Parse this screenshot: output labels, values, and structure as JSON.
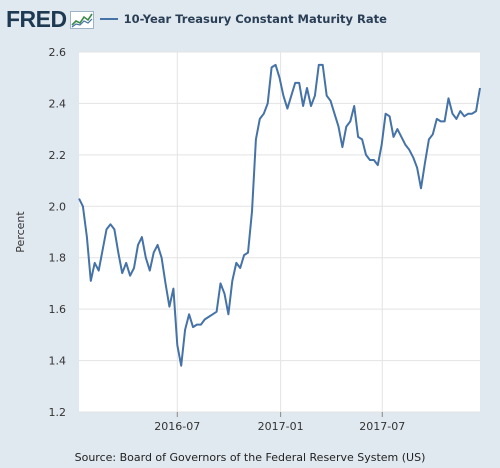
{
  "header": {
    "logo_text": "FRED",
    "legend_label": "10-Year Treasury Constant Maturity Rate",
    "series_color": "#4572a7"
  },
  "source": "Source: Board of Governors of the Federal Reserve System (US)",
  "chart_data": {
    "type": "line",
    "title": "",
    "xlabel": "",
    "ylabel": "Percent",
    "ylim": [
      1.2,
      2.6
    ],
    "yticks": [
      1.2,
      1.4,
      1.6,
      1.8,
      2.0,
      2.2,
      2.4,
      2.6
    ],
    "xlim": [
      "2016-01-08",
      "2017-12-22"
    ],
    "xticks": [
      {
        "date": "2016-07-01",
        "label": "2016-07"
      },
      {
        "date": "2017-01-01",
        "label": "2017-01"
      },
      {
        "date": "2017-07-01",
        "label": "2017-07"
      }
    ],
    "grid": true,
    "series": [
      {
        "name": "10-Year Treasury Constant Maturity Rate",
        "color": "#4572a7",
        "x": [
          "2016-01-08",
          "2016-01-15",
          "2016-01-22",
          "2016-01-29",
          "2016-02-05",
          "2016-02-12",
          "2016-02-19",
          "2016-02-26",
          "2016-03-04",
          "2016-03-11",
          "2016-03-18",
          "2016-03-25",
          "2016-04-01",
          "2016-04-08",
          "2016-04-15",
          "2016-04-22",
          "2016-04-29",
          "2016-05-06",
          "2016-05-13",
          "2016-05-20",
          "2016-05-27",
          "2016-06-03",
          "2016-06-10",
          "2016-06-17",
          "2016-06-24",
          "2016-07-01",
          "2016-07-08",
          "2016-07-15",
          "2016-07-22",
          "2016-07-29",
          "2016-08-05",
          "2016-08-12",
          "2016-08-19",
          "2016-08-26",
          "2016-09-02",
          "2016-09-09",
          "2016-09-16",
          "2016-09-23",
          "2016-09-30",
          "2016-10-07",
          "2016-10-14",
          "2016-10-21",
          "2016-10-28",
          "2016-11-04",
          "2016-11-11",
          "2016-11-18",
          "2016-11-25",
          "2016-12-02",
          "2016-12-09",
          "2016-12-16",
          "2016-12-23",
          "2016-12-30",
          "2017-01-06",
          "2017-01-13",
          "2017-01-20",
          "2017-01-27",
          "2017-02-03",
          "2017-02-10",
          "2017-02-17",
          "2017-02-24",
          "2017-03-03",
          "2017-03-10",
          "2017-03-17",
          "2017-03-24",
          "2017-03-31",
          "2017-04-07",
          "2017-04-14",
          "2017-04-21",
          "2017-04-28",
          "2017-05-05",
          "2017-05-12",
          "2017-05-19",
          "2017-05-26",
          "2017-06-02",
          "2017-06-09",
          "2017-06-16",
          "2017-06-23",
          "2017-06-30",
          "2017-07-07",
          "2017-07-14",
          "2017-07-21",
          "2017-07-28",
          "2017-08-04",
          "2017-08-11",
          "2017-08-18",
          "2017-08-25",
          "2017-09-01",
          "2017-09-08",
          "2017-09-15",
          "2017-09-22",
          "2017-09-29",
          "2017-10-06",
          "2017-10-13",
          "2017-10-20",
          "2017-10-27",
          "2017-11-03",
          "2017-11-10",
          "2017-11-17",
          "2017-11-24",
          "2017-12-01",
          "2017-12-08",
          "2017-12-15",
          "2017-12-22"
        ],
        "values": [
          2.03,
          2.0,
          1.88,
          1.71,
          1.78,
          1.75,
          1.83,
          1.91,
          1.93,
          1.91,
          1.82,
          1.74,
          1.78,
          1.73,
          1.76,
          1.85,
          1.88,
          1.8,
          1.75,
          1.82,
          1.85,
          1.8,
          1.7,
          1.61,
          1.68,
          1.46,
          1.38,
          1.52,
          1.58,
          1.53,
          1.54,
          1.54,
          1.56,
          1.57,
          1.58,
          1.59,
          1.7,
          1.66,
          1.58,
          1.71,
          1.78,
          1.76,
          1.81,
          1.82,
          1.98,
          2.26,
          2.34,
          2.36,
          2.4,
          2.54,
          2.55,
          2.5,
          2.43,
          2.38,
          2.43,
          2.48,
          2.48,
          2.39,
          2.46,
          2.39,
          2.43,
          2.55,
          2.55,
          2.43,
          2.41,
          2.36,
          2.31,
          2.23,
          2.31,
          2.33,
          2.39,
          2.27,
          2.26,
          2.2,
          2.18,
          2.18,
          2.16,
          2.24,
          2.36,
          2.35,
          2.27,
          2.3,
          2.27,
          2.24,
          2.22,
          2.19,
          2.15,
          2.07,
          2.17,
          2.26,
          2.28,
          2.34,
          2.33,
          2.33,
          2.42,
          2.36,
          2.34,
          2.37,
          2.35,
          2.36,
          2.36,
          2.37,
          2.46
        ]
      }
    ]
  }
}
